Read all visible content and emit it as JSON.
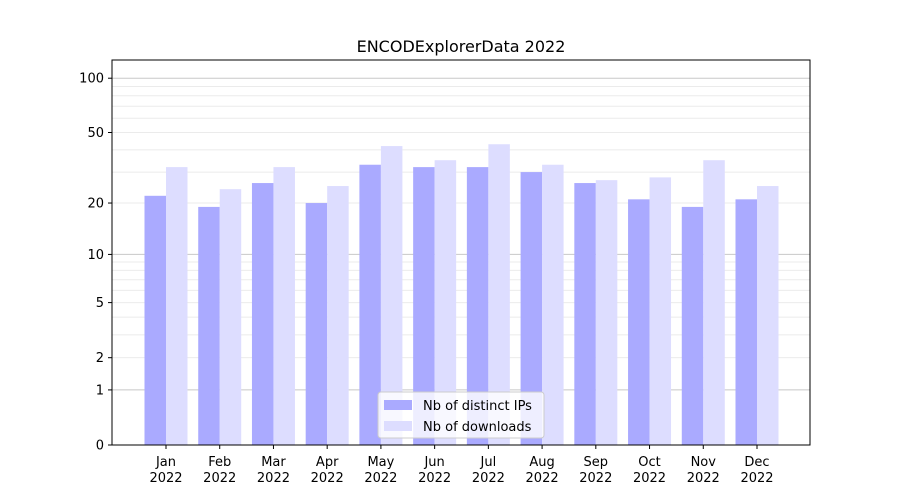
{
  "chart_data": {
    "type": "bar",
    "title": "ENCODExplorerData 2022",
    "xlabel": "",
    "ylabel": "",
    "yscale": "symlog (log10(1+y))",
    "ylim": [
      0,
      126
    ],
    "yticks": [
      0,
      1,
      2,
      5,
      10,
      20,
      50,
      100
    ],
    "grid": true,
    "legend_position": "lower center",
    "categories": [
      "Jan\n2022",
      "Feb\n2022",
      "Mar\n2022",
      "Apr\n2022",
      "May\n2022",
      "Jun\n2022",
      "Jul\n2022",
      "Aug\n2022",
      "Sep\n2022",
      "Oct\n2022",
      "Nov\n2022",
      "Dec\n2022"
    ],
    "series": [
      {
        "name": "Nb of distinct IPs",
        "color": "#aaaaff",
        "values": [
          22,
          19,
          26,
          20,
          33,
          32,
          32,
          30,
          26,
          21,
          19,
          21
        ]
      },
      {
        "name": "Nb of downloads",
        "color": "#ddddff",
        "values": [
          32,
          24,
          32,
          25,
          42,
          35,
          43,
          33,
          27,
          28,
          35,
          25
        ]
      }
    ]
  }
}
